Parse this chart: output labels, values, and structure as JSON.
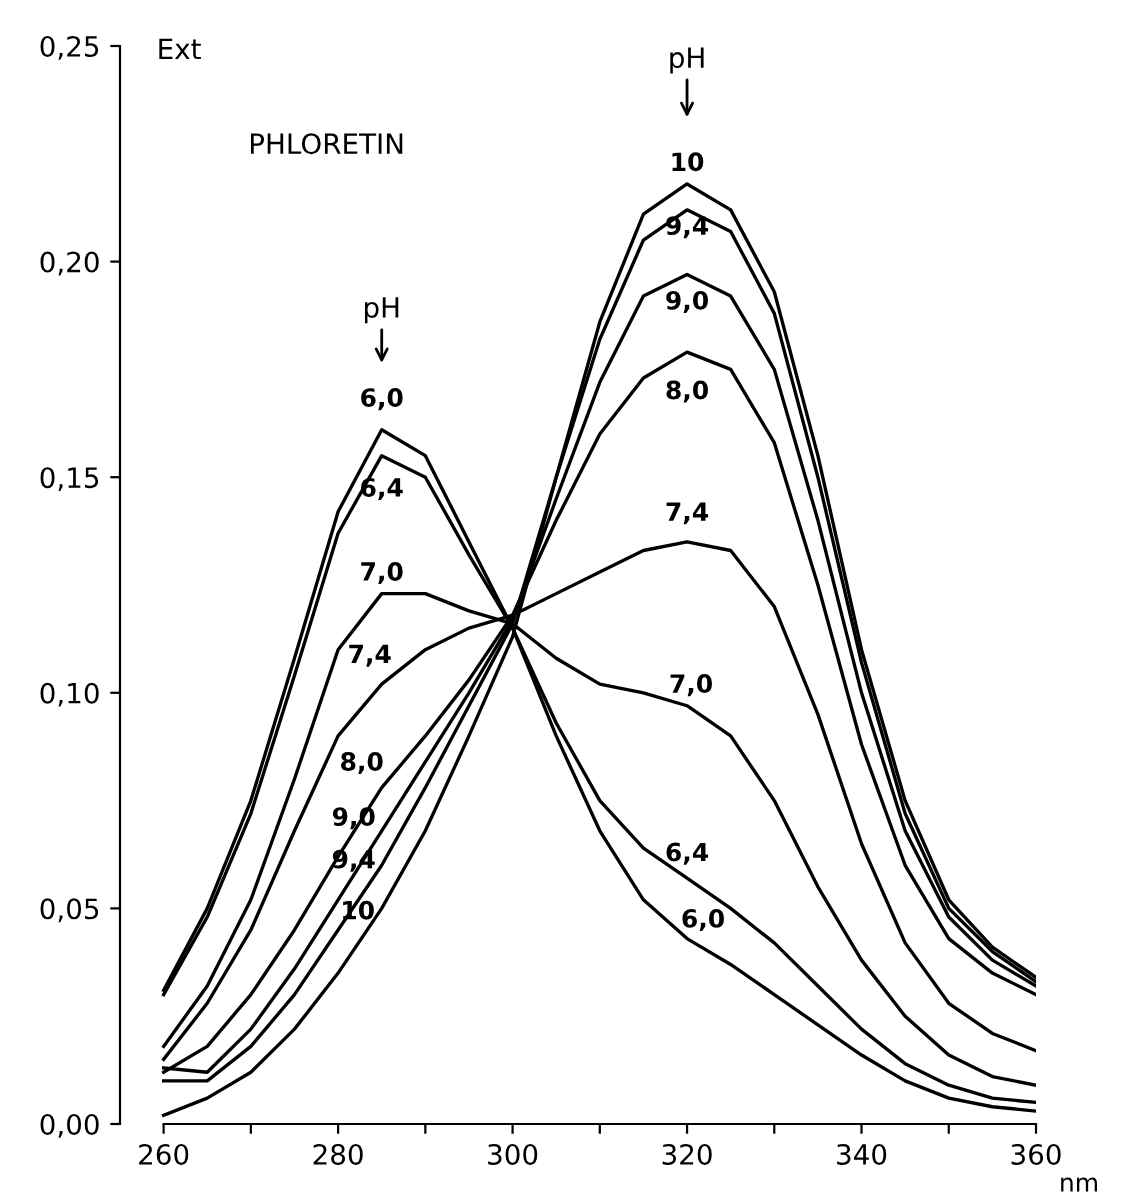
{
  "chart_data": {
    "type": "line",
    "title": "PHLORETIN",
    "xlabel": "nm",
    "ylabel": "Ext",
    "x": [
      260,
      265,
      270,
      275,
      280,
      285,
      290,
      295,
      300,
      305,
      310,
      315,
      320,
      325,
      330,
      335,
      340,
      345,
      350,
      355,
      360
    ],
    "xlim": [
      255,
      360
    ],
    "xticks": [
      260,
      {
        "value": 270,
        "label": null
      },
      280,
      {
        "value": 290,
        "label": null
      },
      300,
      {
        "value": 310,
        "label": null
      },
      320,
      {
        "value": 330,
        "label": null
      },
      340,
      {
        "value": 350,
        "label": null
      },
      360
    ],
    "ylim": [
      0,
      0.25
    ],
    "yticks": [
      {
        "value": 0,
        "label": "0,00"
      },
      {
        "value": 0.05,
        "label": "0,05"
      },
      {
        "value": 0.1,
        "label": "0,10"
      },
      {
        "value": 0.15,
        "label": "0,15"
      },
      {
        "value": 0.2,
        "label": "0,20"
      },
      {
        "value": 0.25,
        "label": "0,25"
      }
    ],
    "grid": false,
    "marker": "none",
    "line_style": "solid",
    "series": [
      {
        "name": "6,0",
        "color": "#000000",
        "values": [
          0.031,
          0.05,
          0.075,
          0.108,
          0.142,
          0.161,
          0.155,
          0.135,
          0.115,
          0.09,
          0.068,
          0.052,
          0.043,
          0.037,
          0.03,
          0.023,
          0.016,
          0.01,
          0.006,
          0.004,
          0.003
        ]
      },
      {
        "name": "6,4",
        "color": "#000000",
        "values": [
          0.03,
          0.048,
          0.072,
          0.104,
          0.137,
          0.155,
          0.15,
          0.132,
          0.115,
          0.093,
          0.075,
          0.064,
          0.057,
          0.05,
          0.042,
          0.032,
          0.022,
          0.014,
          0.009,
          0.006,
          0.005
        ]
      },
      {
        "name": "7,0",
        "color": "#000000",
        "values": [
          0.018,
          0.032,
          0.052,
          0.08,
          0.11,
          0.123,
          0.123,
          0.119,
          0.116,
          0.108,
          0.102,
          0.1,
          0.097,
          0.09,
          0.075,
          0.055,
          0.038,
          0.025,
          0.016,
          0.011,
          0.009
        ]
      },
      {
        "name": "7,4",
        "color": "#000000",
        "values": [
          0.015,
          0.028,
          0.045,
          0.068,
          0.09,
          0.102,
          0.11,
          0.115,
          0.118,
          0.123,
          0.128,
          0.133,
          0.135,
          0.133,
          0.12,
          0.095,
          0.065,
          0.042,
          0.028,
          0.021,
          0.017
        ]
      },
      {
        "name": "8,0",
        "color": "#000000",
        "values": [
          0.012,
          0.018,
          0.03,
          0.045,
          0.062,
          0.078,
          0.09,
          0.103,
          0.118,
          0.14,
          0.16,
          0.173,
          0.179,
          0.175,
          0.158,
          0.125,
          0.088,
          0.06,
          0.043,
          0.035,
          0.03
        ]
      },
      {
        "name": "9,0",
        "color": "#000000",
        "values": [
          0.013,
          0.012,
          0.022,
          0.036,
          0.052,
          0.068,
          0.084,
          0.1,
          0.117,
          0.145,
          0.172,
          0.192,
          0.197,
          0.192,
          0.175,
          0.14,
          0.1,
          0.068,
          0.048,
          0.038,
          0.032
        ]
      },
      {
        "name": "9,4",
        "color": "#000000",
        "values": [
          0.01,
          0.01,
          0.018,
          0.03,
          0.045,
          0.06,
          0.078,
          0.097,
          0.116,
          0.15,
          0.182,
          0.205,
          0.212,
          0.207,
          0.188,
          0.15,
          0.107,
          0.072,
          0.05,
          0.04,
          0.033
        ]
      },
      {
        "name": "10",
        "color": "#000000",
        "values": [
          0.002,
          0.006,
          0.012,
          0.022,
          0.035,
          0.05,
          0.068,
          0.09,
          0.113,
          0.15,
          0.186,
          0.211,
          0.218,
          0.212,
          0.193,
          0.155,
          0.11,
          0.075,
          0.052,
          0.041,
          0.034
        ]
      }
    ],
    "annotations": [
      "pH",
      "pH"
    ]
  }
}
